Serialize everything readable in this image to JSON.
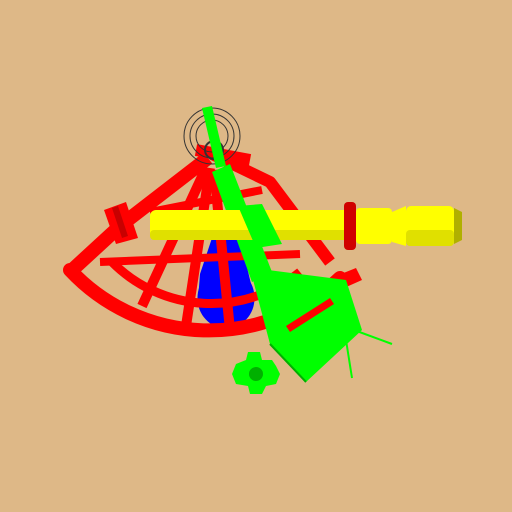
{
  "scene": {
    "subject": "sextant",
    "colors": {
      "background": "#DEB887",
      "frame": "#FF0000",
      "frame_dark": "#C80000",
      "index_arm": "#00FF00",
      "index_arm_dark": "#00B000",
      "telescope": "#FFFF00",
      "telescope_shade": "#E0E000",
      "telescope_dark": "#B0B000",
      "telescope_ring": "#D00000",
      "handle": "#0000FF",
      "mirror_outline": "#333333"
    }
  }
}
